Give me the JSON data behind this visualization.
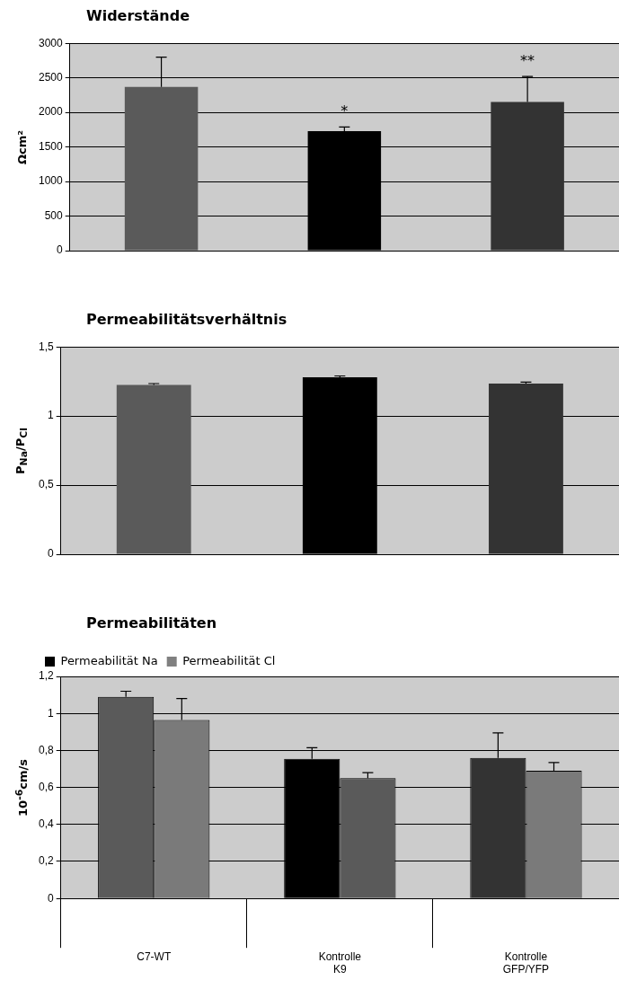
{
  "chart_data": [
    {
      "type": "bar",
      "title": "Widerstände",
      "ylabel": "Ωcm²",
      "categories": [
        null,
        null,
        null
      ],
      "values": [
        2370,
        1730,
        2150
      ],
      "colors": [
        "#5a5a5a",
        "#000000",
        "#333333"
      ],
      "errors": [
        [
          2370,
          2800
        ],
        [
          1730,
          1790
        ],
        [
          2150,
          2520
        ]
      ],
      "ylim": [
        0,
        3000
      ],
      "yticks": [
        0,
        500,
        1000,
        1500,
        2000,
        2500,
        3000
      ],
      "grid": "y",
      "tick_labels": "y",
      "annotations": [
        "*",
        "**"
      ]
    },
    {
      "type": "bar",
      "title": "Permeabilitätsverhältnis",
      "ylabel": "P$_{Na}$/P$_{Cl}$",
      "categories": [
        null,
        null,
        null
      ],
      "values": [
        1.225,
        1.28,
        1.235
      ],
      "colors": [
        "#5a5a5a",
        "#000000",
        "#333333"
      ],
      "errors": [
        [
          1.225,
          1.235
        ],
        [
          1.28,
          1.29
        ],
        [
          1.235,
          1.245
        ]
      ],
      "ylim": [
        0,
        1.5
      ],
      "yticks": [
        0,
        {
          "value": 0.5,
          "label": "0,5"
        },
        1,
        {
          "value": 1.5,
          "label": "1,5"
        }
      ],
      "grid": "y",
      "tick_labels": "y"
    },
    {
      "type": "bar",
      "title": "Permeabilitäten",
      "ylabel": "10$^{-6}$cm/s",
      "categories": [
        "C7-WT",
        "Kontrolle\nK9",
        "Kontrolle\nGFP/YFP"
      ],
      "legend": "top left",
      "series": [
        {
          "name": "Permeabilität Na",
          "color": "#000000",
          "colors": [
            "#5a5a5a",
            "#000000",
            "#333333"
          ],
          "values": [
            1.09,
            0.755,
            0.76
          ],
          "errors": [
            [
              1.09,
              1.12
            ],
            [
              0.755,
              0.815
            ],
            [
              0.76,
              0.895
            ]
          ]
        },
        {
          "name": "Permeabilität Cl",
          "color": "#808080",
          "colors": [
            "#7a7a7a",
            "#5a5a5a",
            "#7a7a7a"
          ],
          "values": [
            0.965,
            0.65,
            0.69
          ],
          "errors": [
            [
              0.965,
              1.08
            ],
            [
              0.65,
              0.68
            ],
            [
              0.69,
              0.735
            ]
          ]
        }
      ],
      "ylim": [
        0,
        1.2
      ],
      "yticks": [
        0,
        {
          "value": 0.2,
          "label": "0,2"
        },
        {
          "value": 0.4,
          "label": "0,4"
        },
        {
          "value": 0.6,
          "label": "0,6"
        },
        {
          "value": 0.8,
          "label": "0,8"
        },
        1,
        {
          "value": 1.2,
          "label": "1,2"
        }
      ],
      "grid": "y"
    }
  ]
}
